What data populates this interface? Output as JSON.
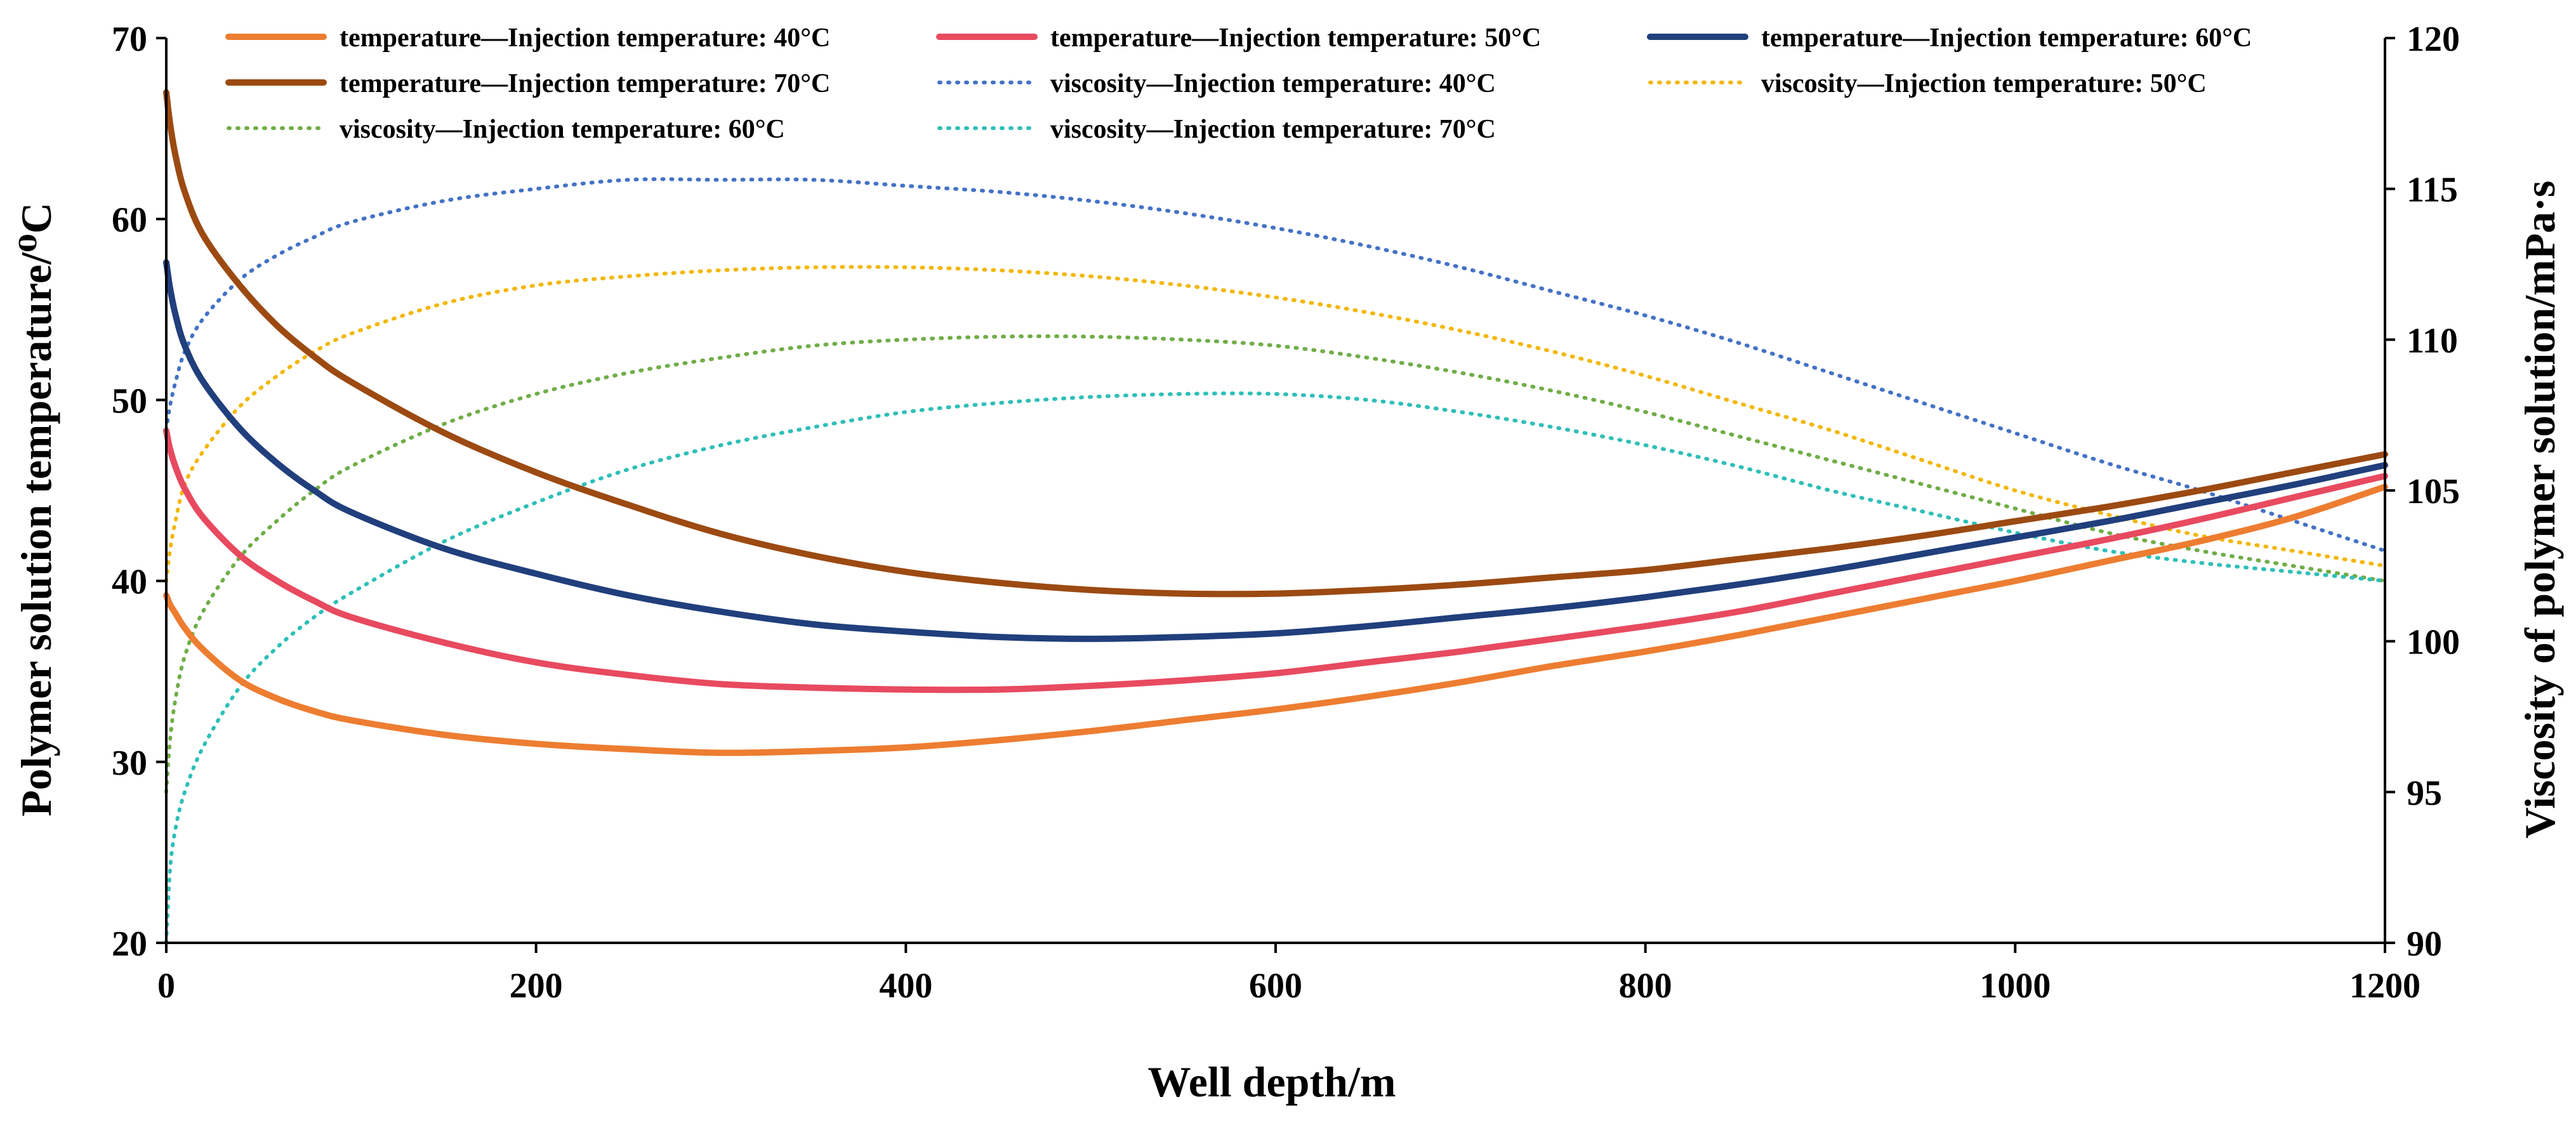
{
  "chart_data": {
    "type": "line",
    "x_axis": {
      "label": "Well depth/m",
      "range": [
        0,
        1200
      ],
      "ticks": [
        0,
        200,
        400,
        600,
        800,
        1000,
        1200
      ],
      "tick_labels": [
        "0",
        "200",
        "400",
        "600",
        "800",
        "1000",
        "1200"
      ]
    },
    "y_axis_left": {
      "label": "Polymer solution temperature/⁰C",
      "range": [
        20,
        70
      ],
      "ticks": [
        20,
        30,
        40,
        50,
        60,
        70
      ],
      "tick_labels": [
        "20",
        "30",
        "40",
        "50",
        "60",
        "70"
      ]
    },
    "y_axis_right": {
      "label": "Viscosity of polymer solution/mPa·s",
      "range": [
        90,
        120
      ],
      "ticks": [
        90,
        95,
        100,
        105,
        110,
        115,
        120
      ],
      "tick_labels": [
        "90",
        "95",
        "100",
        "105",
        "110",
        "115",
        "120"
      ]
    },
    "grid": false,
    "legend_position": "top",
    "x": [
      0,
      2,
      5,
      10,
      20,
      40,
      60,
      80,
      100,
      150,
      200,
      250,
      300,
      350,
      400,
      450,
      500,
      550,
      600,
      650,
      700,
      750,
      800,
      850,
      900,
      950,
      1000,
      1050,
      1100,
      1150,
      1200
    ],
    "series": [
      {
        "name": "temperature—Injection temperature: 40°C",
        "axis": "left",
        "style": "solid",
        "color": "#ED7D31",
        "values": [
          39.2,
          38.7,
          38.2,
          37.4,
          36.2,
          34.5,
          33.5,
          32.8,
          32.3,
          31.5,
          31.0,
          30.7,
          30.5,
          30.6,
          30.8,
          31.2,
          31.7,
          32.3,
          32.9,
          33.6,
          34.4,
          35.3,
          36.1,
          37.0,
          38.0,
          39.0,
          40.0,
          41.1,
          42.2,
          43.5,
          45.2
        ]
      },
      {
        "name": "temperature—Injection temperature: 50°C",
        "axis": "left",
        "style": "solid",
        "color": "#E84A5F",
        "values": [
          48.3,
          47.3,
          46.3,
          45.1,
          43.5,
          41.4,
          40.0,
          38.9,
          38.0,
          36.6,
          35.5,
          34.8,
          34.3,
          34.1,
          34.0,
          34.0,
          34.2,
          34.5,
          34.9,
          35.5,
          36.1,
          36.8,
          37.5,
          38.3,
          39.3,
          40.3,
          41.3,
          42.3,
          43.4,
          44.6,
          45.8
        ]
      },
      {
        "name": "temperature—Injection temperature: 60°C",
        "axis": "left",
        "style": "solid",
        "color": "#203F7C",
        "values": [
          57.6,
          56.2,
          54.7,
          53.0,
          51.0,
          48.4,
          46.5,
          45.0,
          43.8,
          41.8,
          40.4,
          39.2,
          38.3,
          37.6,
          37.2,
          36.9,
          36.8,
          36.9,
          37.1,
          37.5,
          38.0,
          38.5,
          39.1,
          39.8,
          40.6,
          41.5,
          42.4,
          43.3,
          44.3,
          45.3,
          46.4
        ]
      },
      {
        "name": "temperature—Injection temperature: 70°C",
        "axis": "left",
        "style": "solid",
        "color": "#9C4A12",
        "values": [
          67.0,
          65.3,
          63.5,
          61.5,
          59.1,
          56.3,
          54.1,
          52.4,
          51.0,
          48.2,
          46.0,
          44.2,
          42.6,
          41.4,
          40.5,
          39.9,
          39.5,
          39.3,
          39.3,
          39.5,
          39.8,
          40.2,
          40.6,
          41.2,
          41.8,
          42.5,
          43.3,
          44.1,
          45.0,
          46.0,
          47.0
        ]
      },
      {
        "name": "viscosity—Injection temperature: 40°C",
        "axis": "right",
        "style": "dotted",
        "color": "#4472C4",
        "values": [
          107.0,
          107.8,
          108.6,
          109.6,
          110.7,
          112.0,
          112.8,
          113.4,
          113.9,
          114.6,
          115.0,
          115.3,
          115.3,
          115.3,
          115.1,
          114.9,
          114.6,
          114.2,
          113.7,
          113.1,
          112.4,
          111.6,
          110.8,
          109.9,
          108.9,
          107.9,
          106.9,
          105.9,
          105.0,
          104.0,
          103.0
        ]
      },
      {
        "name": "viscosity—Injection temperature: 50°C",
        "axis": "right",
        "style": "dotted",
        "color": "#F2B705",
        "values": [
          102.0,
          103.0,
          104.0,
          105.2,
          106.3,
          107.8,
          108.8,
          109.6,
          110.2,
          111.2,
          111.8,
          112.1,
          112.3,
          112.4,
          112.4,
          112.3,
          112.1,
          111.8,
          111.4,
          110.9,
          110.3,
          109.6,
          108.8,
          107.9,
          107.0,
          106.0,
          105.0,
          104.2,
          103.5,
          103.0,
          102.5
        ]
      },
      {
        "name": "viscosity—Injection temperature: 60°C",
        "axis": "right",
        "style": "dotted",
        "color": "#70AD47",
        "values": [
          95.0,
          96.7,
          98.1,
          99.5,
          101.0,
          102.8,
          104.0,
          105.0,
          105.8,
          107.2,
          108.2,
          108.9,
          109.4,
          109.8,
          110.0,
          110.1,
          110.1,
          110.0,
          109.8,
          109.4,
          108.9,
          108.3,
          107.6,
          106.8,
          106.0,
          105.2,
          104.4,
          103.6,
          103.0,
          102.5,
          102.0
        ]
      },
      {
        "name": "viscosity—Injection temperature: 70°C",
        "axis": "right",
        "style": "dotted",
        "color": "#2EBFB8",
        "values": [
          90.0,
          92.4,
          93.8,
          95.0,
          96.5,
          98.5,
          99.8,
          100.8,
          101.6,
          103.3,
          104.6,
          105.7,
          106.5,
          107.1,
          107.6,
          107.9,
          108.1,
          108.2,
          108.2,
          108.0,
          107.6,
          107.1,
          106.5,
          105.8,
          105.0,
          104.3,
          103.6,
          103.0,
          102.6,
          102.3,
          102.0
        ]
      }
    ]
  }
}
